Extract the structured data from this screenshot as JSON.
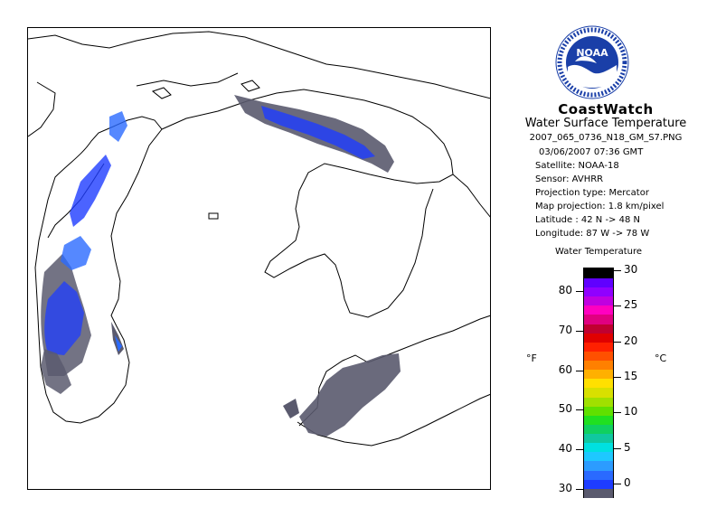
{
  "header": {
    "title": "CoastWatch",
    "product": "Water Surface Temperature",
    "filename": "2007_065_0736_N18_GM_S7.PNG"
  },
  "logo": {
    "text": "NOAA",
    "ring_text": "NATIONAL OCEANIC AND ATMOSPHERIC ADMINISTRATION · U.S. DEPARTMENT OF COMMERCE"
  },
  "metadata": {
    "date_time": "03/06/2007    07:36 GMT",
    "satellite": "Satellite: NOAA-18",
    "sensor": "Sensor: AVHRR",
    "projection_type": "Projection type:  Mercator",
    "map_projection": "Map projection: 1.8 km/pixel",
    "latitude": "Latitude : 42 N  -> 48 N",
    "longitude": "Longitude: 87 W  -> 78 W"
  },
  "legend": {
    "title": "Water Temperature",
    "unit_f": "°F",
    "unit_c": "°C",
    "f_ticks": [
      "80",
      "70",
      "60",
      "50",
      "40",
      "30"
    ],
    "c_ticks": [
      "30",
      "25",
      "20",
      "15",
      "10",
      "5",
      "0"
    ],
    "colors": [
      "#5a5a6e",
      "#1e3cff",
      "#2a6aff",
      "#2c9cff",
      "#1ec8ff",
      "#00e0e0",
      "#10c8a0",
      "#10d060",
      "#20e020",
      "#60e000",
      "#a0e000",
      "#d8e000",
      "#ffe000",
      "#ffb000",
      "#ff8000",
      "#ff5000",
      "#ff2000",
      "#e00000",
      "#c00030",
      "#e00080",
      "#ff00c0",
      "#c000e0",
      "#9000ff",
      "#6000ff",
      "#000000"
    ]
  }
}
